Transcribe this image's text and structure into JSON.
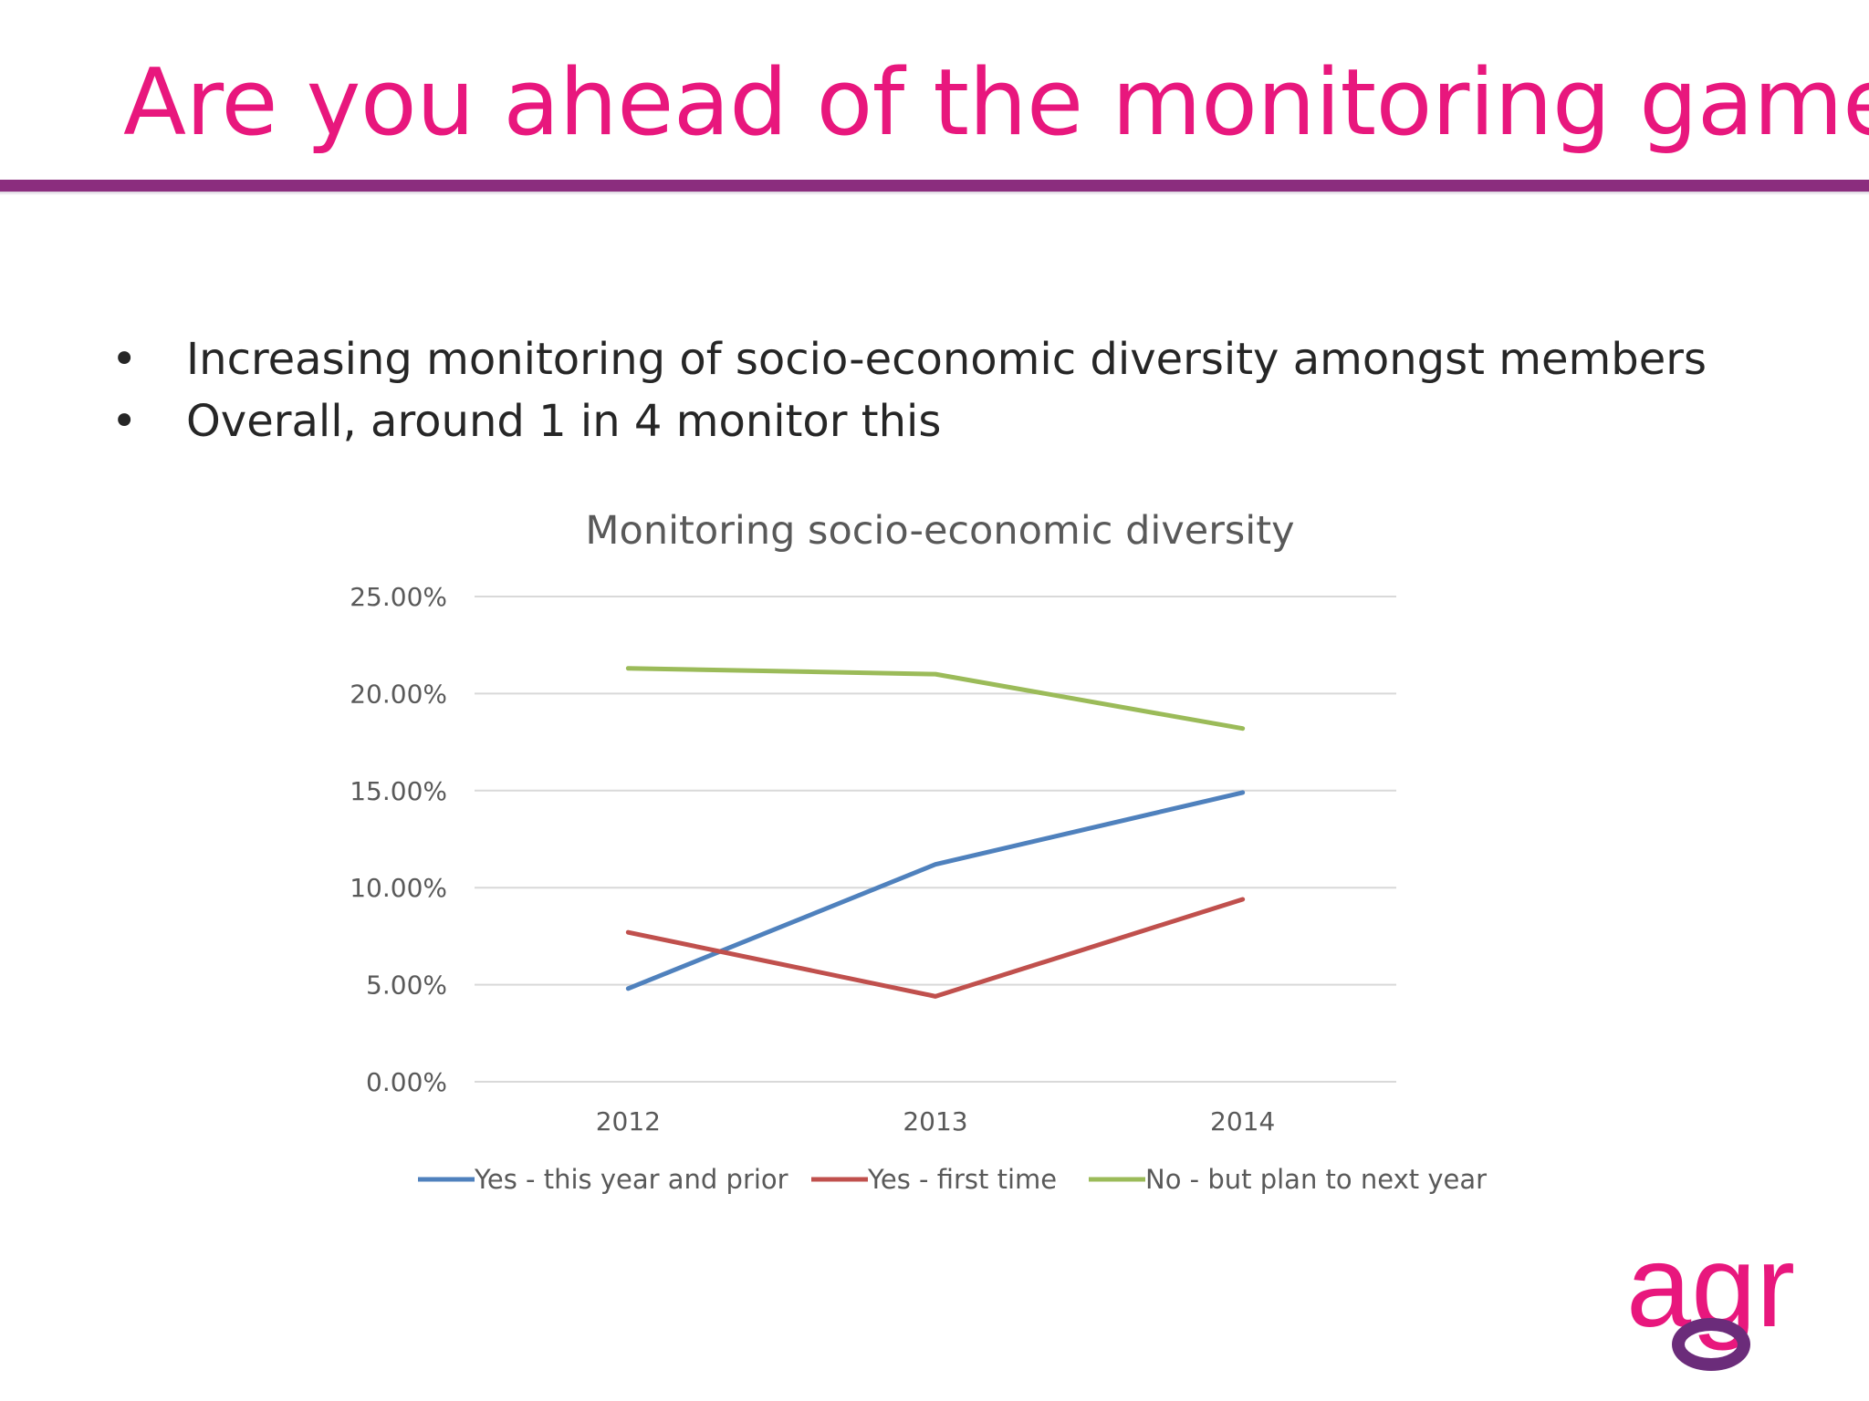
{
  "slide": {
    "title": "Are you ahead of the monitoring game?",
    "bullets": [
      "Increasing monitoring of socio-economic diversity amongst members",
      "Overall, around 1 in 4 monitor this"
    ],
    "logo_text": "agr",
    "colors": {
      "title": "#e8177d",
      "rule": "#8b2d7e",
      "logo_pink": "#e8177d",
      "logo_purple": "#6b2c7a"
    }
  },
  "chart_data": {
    "type": "line",
    "title": "Monitoring socio-economic diversity",
    "xlabel": "",
    "ylabel": "",
    "categories": [
      "2012",
      "2013",
      "2014"
    ],
    "ylim": [
      0,
      0.25
    ],
    "yticks": [
      0,
      0.05,
      0.1,
      0.15,
      0.2,
      0.25
    ],
    "ytick_labels": [
      "0.00%",
      "5.00%",
      "10.00%",
      "15.00%",
      "20.00%",
      "25.00%"
    ],
    "grid": true,
    "legend_position": "bottom",
    "series": [
      {
        "name": "Yes - this year and prior",
        "color": "#4f81bd",
        "values": [
          0.048,
          0.112,
          0.149
        ]
      },
      {
        "name": "Yes - first time",
        "color": "#c0504d",
        "values": [
          0.077,
          0.044,
          0.094
        ]
      },
      {
        "name": "No - but plan to next year",
        "color": "#9bbb59",
        "values": [
          0.213,
          0.21,
          0.182
        ]
      }
    ]
  }
}
